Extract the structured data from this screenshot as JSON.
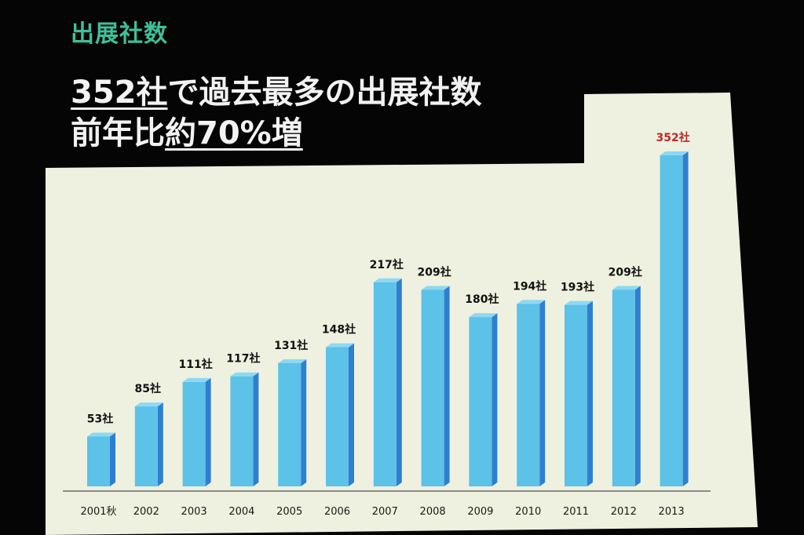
{
  "slide_label": "出展社数",
  "headline": {
    "line1_underlined": "352社",
    "line1_rest": "で過去最多の出展社数",
    "line2_prefix": "前年比",
    "line2_underlined": "約70%増"
  },
  "colors": {
    "label_green": "#3fbf9a",
    "bar_front": "#5cc2e8",
    "bar_side": "#2f7fd1",
    "bar_top": "#8fd8f3",
    "highlight_label": "#c0262b",
    "panel": "#eef1df"
  },
  "chart_data": {
    "type": "bar",
    "title": "",
    "xlabel": "",
    "ylabel": "",
    "categories": [
      "2001秋",
      "2002",
      "2003",
      "2004",
      "2005",
      "2006",
      "2007",
      "2008",
      "2009",
      "2010",
      "2011",
      "2012",
      "2013"
    ],
    "values": [
      53,
      85,
      111,
      117,
      131,
      148,
      217,
      209,
      180,
      194,
      193,
      209,
      352
    ],
    "data_labels": [
      "53社",
      "85社",
      "111社",
      "117社",
      "131社",
      "148社",
      "217社",
      "209社",
      "180社",
      "194社",
      "193社",
      "209社",
      "352社"
    ],
    "highlight_index": 12,
    "ylim": [
      0,
      370
    ],
    "grid": false,
    "legend": "none"
  }
}
